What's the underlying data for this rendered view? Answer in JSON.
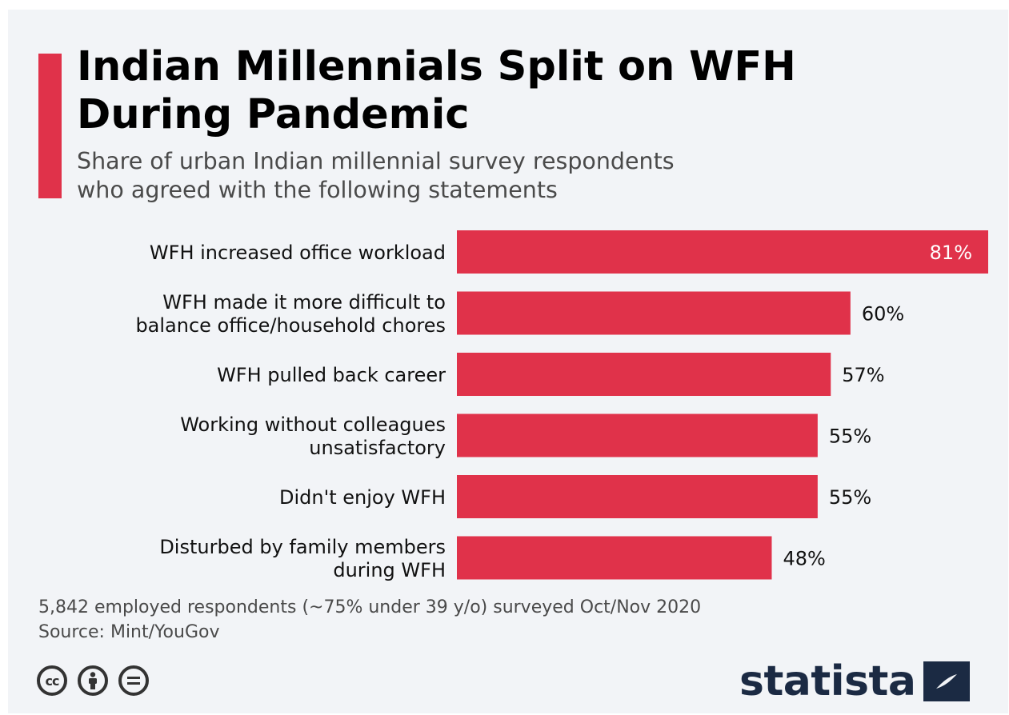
{
  "colors": {
    "accent": "#e0324a",
    "bar": "#e0324a",
    "brand": "#1b2a43",
    "background": "#f2f4f7"
  },
  "header": {
    "title": "Indian Millennials Split on WFH\nDuring Pandemic",
    "subtitle": "Share of urban Indian millennial survey respondents\nwho agreed with the following statements"
  },
  "chart_data": {
    "type": "bar",
    "orientation": "horizontal",
    "categories": [
      "WFH increased office workload",
      "WFH made it more difficult to\nbalance office/household chores",
      "WFH pulled back career",
      "Working without colleagues\nunsatisfactory",
      "Didn't enjoy WFH",
      "Disturbed by family members\nduring WFH"
    ],
    "values": [
      81,
      60,
      57,
      55,
      55,
      48
    ],
    "value_labels": [
      "81%",
      "60%",
      "57%",
      "55%",
      "55%",
      "48%"
    ],
    "unit": "%",
    "xlim": [
      0,
      81
    ],
    "grid": false,
    "legend": "none"
  },
  "footer": {
    "note": "5,842 employed respondents (~75% under 39 y/o) surveyed Oct/Nov 2020",
    "source": "Source: Mint/YouGov",
    "license_icons": [
      "creative-commons-icon",
      "attribution-icon",
      "no-derivatives-icon"
    ],
    "cc_text": "cc",
    "brand_name": "statista"
  }
}
